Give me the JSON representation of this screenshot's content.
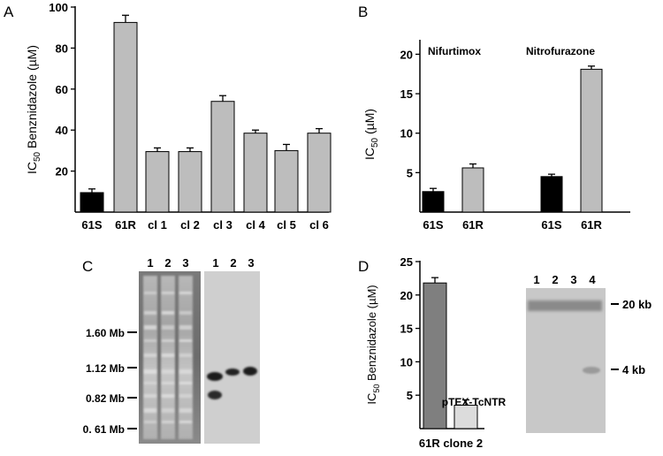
{
  "panels": {
    "a": "A",
    "b": "B",
    "c": "C",
    "d": "D"
  },
  "chart_data": [
    {
      "panel": "A",
      "type": "bar",
      "categories": [
        "61S",
        "61R",
        "cl 1",
        "cl 2",
        "cl 3",
        "cl 4",
        "cl 5",
        "cl 6"
      ],
      "values": [
        9.5,
        92.5,
        29.5,
        29.5,
        54,
        38.5,
        30,
        38.5
      ],
      "errors": [
        1.8,
        3.5,
        1.8,
        1.8,
        2.8,
        1.5,
        3,
        2.2
      ],
      "fills": [
        "#000000",
        "#bdbdbd",
        "#bdbdbd",
        "#bdbdbd",
        "#bdbdbd",
        "#bdbdbd",
        "#bdbdbd",
        "#bdbdbd"
      ],
      "ylabel": {
        "pre": "IC",
        "sub": "50",
        "post": " Benznidazole (µM)"
      },
      "yticks": [
        "20",
        "40",
        "60",
        "80",
        "100"
      ],
      "ylim": [
        0,
        100
      ]
    },
    {
      "panel": "B",
      "type": "bar",
      "groups": [
        "Nifurtimox",
        "Nitrofurazone"
      ],
      "categories": [
        "61S",
        "61R",
        "61S",
        "61R"
      ],
      "values": [
        2.6,
        5.6,
        4.5,
        18.1
      ],
      "errors": [
        0.4,
        0.5,
        0.3,
        0.4
      ],
      "fills": [
        "#000000",
        "#bdbdbd",
        "#000000",
        "#bdbdbd"
      ],
      "ylabel": {
        "pre": "IC",
        "sub": "50",
        "post": " (µM)"
      },
      "yticks": [
        "5",
        "10",
        "15",
        "20"
      ],
      "ylim": [
        0,
        21.5
      ]
    },
    {
      "panel": "D",
      "type": "bar",
      "categories": [
        "61R clone 2"
      ],
      "series": [
        {
          "name": "",
          "value": 21.8,
          "error": 0.8,
          "fill": "#7f7f7f"
        },
        {
          "name": "pTEX-TcNTR",
          "value": 3.5,
          "error": 0.8,
          "fill": "#dcdcdc"
        }
      ],
      "ylabel": {
        "pre": "IC",
        "sub": "50",
        "post": " Benznidazole (µM)"
      },
      "yticks": [
        "5",
        "10",
        "15",
        "20",
        "25"
      ],
      "ylim": [
        0,
        25
      ]
    }
  ],
  "gel_c": {
    "size_markers": [
      "1.60 Mb",
      "1.12 Mb",
      "0.82 Mb",
      "0. 61 Mb"
    ],
    "left_lanes": [
      "1",
      "2",
      "3"
    ],
    "right_lanes": [
      "1",
      "2",
      "3"
    ]
  },
  "gel_d": {
    "lanes": [
      "1",
      "2",
      "3",
      "4"
    ],
    "size_markers": [
      "20 kb",
      "4 kb"
    ]
  }
}
